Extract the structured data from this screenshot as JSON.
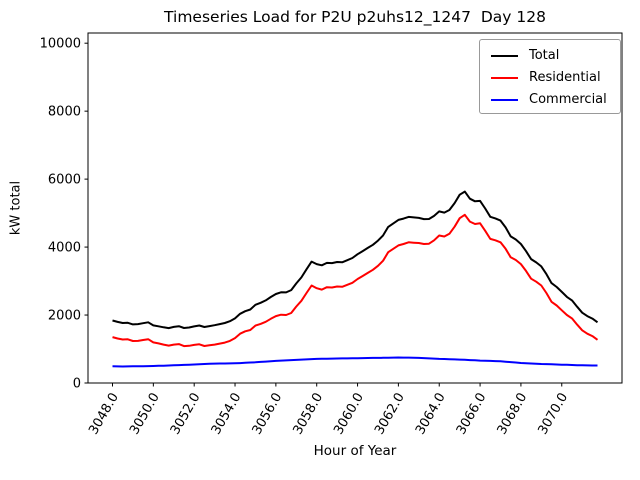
{
  "title": "Timeseries Load for P2U p2uhs12_1247  Day 128",
  "chart_data": {
    "type": "line",
    "title": "Timeseries Load for P2U p2uhs12_1247  Day 128",
    "xlabel": "Hour of Year",
    "ylabel": "kW total",
    "xlim": [
      3046.8,
      3072.95
    ],
    "ylim": [
      0,
      10300
    ],
    "grid": false,
    "legend_position": "upper right",
    "xticks": [
      3048,
      3050,
      3052,
      3054,
      3056,
      3058,
      3060,
      3062,
      3064,
      3066,
      3068,
      3070
    ],
    "xtick_labels": [
      "3048.0",
      "3050.0",
      "3052.0",
      "3054.0",
      "3056.0",
      "3058.0",
      "3060.0",
      "3062.0",
      "3064.0",
      "3066.0",
      "3068.0",
      "3070.0"
    ],
    "yticks": [
      0,
      2000,
      4000,
      6000,
      8000,
      10000
    ],
    "ytick_labels": [
      "0",
      "2000",
      "4000",
      "6000",
      "8000",
      "10000"
    ],
    "x_start": 3048.0,
    "x_step": 0.25,
    "series": [
      {
        "name": "Total",
        "color": "#000000",
        "values": [
          1840,
          1798,
          1767,
          1773,
          1725,
          1732,
          1759,
          1787,
          1695,
          1670,
          1640,
          1615,
          1650,
          1672,
          1618,
          1634,
          1665,
          1691,
          1648,
          1674,
          1700,
          1733,
          1765,
          1818,
          1900,
          2037,
          2114,
          2162,
          2300,
          2360,
          2430,
          2530,
          2620,
          2668,
          2665,
          2733,
          2930,
          3108,
          3345,
          3573,
          3500,
          3463,
          3535,
          3528,
          3560,
          3553,
          3615,
          3678,
          3790,
          3883,
          3975,
          4068,
          4190,
          4343,
          4595,
          4698,
          4800,
          4838,
          4887,
          4874,
          4860,
          4823,
          4825,
          4918,
          5050,
          5015,
          5090,
          5295,
          5540,
          5633,
          5425,
          5348,
          5360,
          5135,
          4890,
          4845,
          4780,
          4578,
          4315,
          4223,
          4090,
          3883,
          3645,
          3548,
          3430,
          3205,
          2940,
          2825,
          2680,
          2535,
          2430,
          2245,
          2070,
          1968,
          1896,
          1785
        ]
      },
      {
        "name": "Residential",
        "color": "#ff0000",
        "values": [
          1350,
          1310,
          1280,
          1285,
          1235,
          1240,
          1265,
          1290,
          1195,
          1165,
          1130,
          1100,
          1130,
          1145,
          1085,
          1095,
          1120,
          1140,
          1090,
          1110,
          1130,
          1160,
          1190,
          1240,
          1320,
          1450,
          1520,
          1560,
          1690,
          1740,
          1800,
          1890,
          1970,
          2010,
          2000,
          2060,
          2250,
          2420,
          2650,
          2870,
          2790,
          2750,
          2820,
          2810,
          2840,
          2830,
          2890,
          2950,
          3060,
          3150,
          3240,
          3330,
          3450,
          3600,
          3850,
          3950,
          4050,
          4090,
          4140,
          4130,
          4120,
          4090,
          4100,
          4200,
          4340,
          4310,
          4390,
          4600,
          4850,
          4950,
          4750,
          4680,
          4700,
          4480,
          4240,
          4200,
          4140,
          3950,
          3700,
          3620,
          3500,
          3300,
          3070,
          2980,
          2870,
          2650,
          2390,
          2280,
          2140,
          2000,
          1900,
          1720,
          1550,
          1450,
          1380,
          1270
        ]
      },
      {
        "name": "Commercial",
        "color": "#0000ff",
        "values": [
          490,
          488,
          487,
          488,
          490,
          492,
          494,
          497,
          500,
          505,
          510,
          515,
          520,
          527,
          533,
          539,
          545,
          551,
          558,
          564,
          570,
          573,
          575,
          578,
          580,
          587,
          594,
          602,
          610,
          620,
          630,
          640,
          650,
          658,
          665,
          673,
          680,
          688,
          695,
          703,
          710,
          713,
          715,
          718,
          720,
          723,
          725,
          728,
          730,
          733,
          735,
          738,
          740,
          743,
          745,
          748,
          750,
          748,
          747,
          744,
          740,
          733,
          725,
          718,
          710,
          705,
          700,
          695,
          690,
          683,
          675,
          668,
          660,
          655,
          650,
          645,
          640,
          628,
          615,
          603,
          590,
          583,
          575,
          568,
          560,
          555,
          550,
          545,
          540,
          535,
          530,
          525,
          520,
          518,
          516,
          515
        ]
      }
    ]
  }
}
